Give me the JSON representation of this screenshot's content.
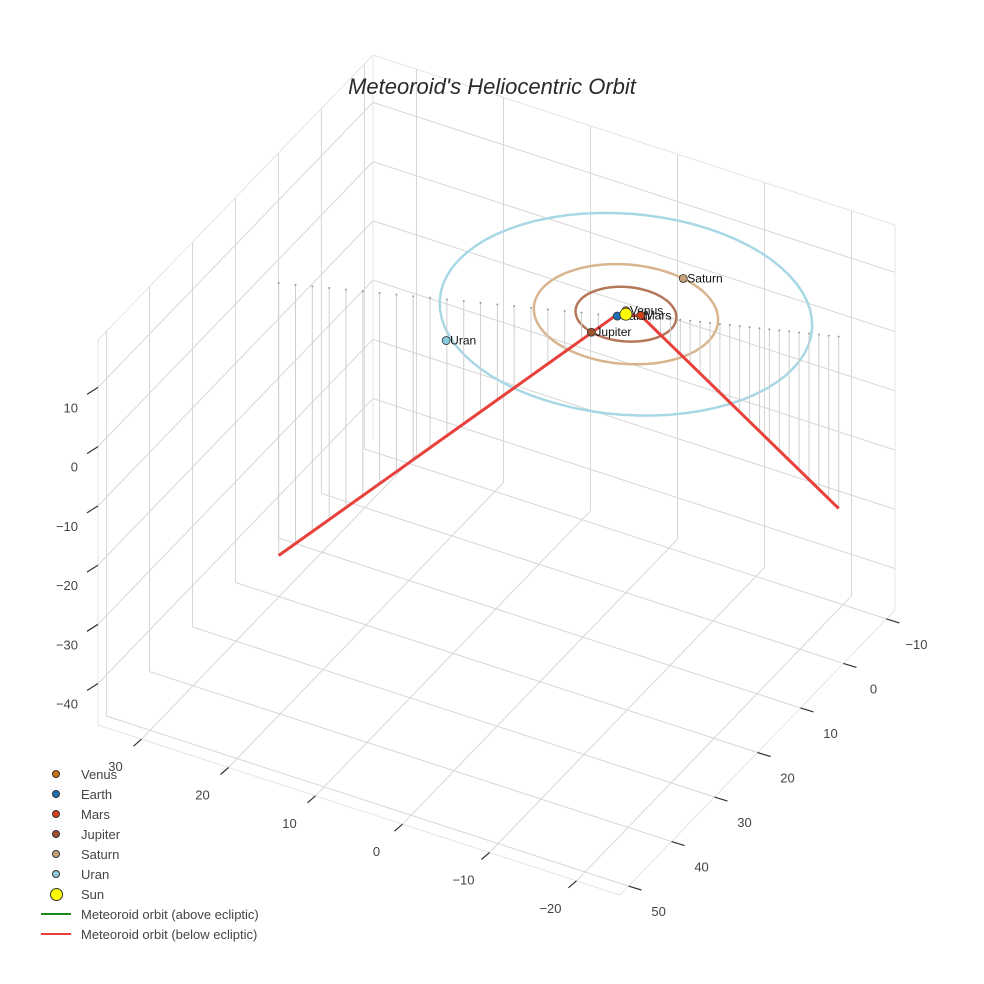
{
  "chart_data": {
    "type": "scatter3d",
    "title": "Meteoroid's Heliocentric Orbit",
    "axes": {
      "x": {
        "label": "",
        "ticks": [
          -20,
          -10,
          0,
          10,
          20,
          30
        ],
        "range": [
          -25,
          35
        ]
      },
      "y": {
        "label": "",
        "ticks": [
          -10,
          0,
          10,
          20,
          30,
          40,
          50
        ],
        "range": [
          -12,
          52
        ]
      },
      "z": {
        "label": "",
        "ticks": [
          10,
          0,
          -10,
          -20,
          -30,
          -40
        ],
        "range": [
          -47,
          18
        ]
      }
    },
    "grid": true,
    "legend_position": "bottom-left",
    "planets": [
      {
        "name": "Venus",
        "color": "#c9720f",
        "x": 0.3,
        "y": -0.6,
        "z": 0,
        "orbit_radius": 0.72,
        "label": "Venus"
      },
      {
        "name": "Earth",
        "color": "#1f6fb5",
        "x": 0.6,
        "y": 0.8,
        "z": 0,
        "orbit_radius": 1.0,
        "label": "Earth"
      },
      {
        "name": "Mars",
        "color": "#d0401b",
        "x": -1.4,
        "y": -0.6,
        "z": 0,
        "orbit_radius": 1.52,
        "label": "Mars"
      },
      {
        "name": "Jupiter",
        "color": "#a0522d",
        "x": 1.5,
        "y": 5.0,
        "z": 0,
        "orbit_radius": 5.2,
        "label": "Jupiter"
      },
      {
        "name": "Saturn",
        "color": "#c8a078",
        "x": -2.0,
        "y": -9.3,
        "z": 0,
        "orbit_radius": 9.5,
        "label": "Saturn"
      },
      {
        "name": "Uran",
        "color": "#8ccbe0",
        "x": 13.5,
        "y": 14.5,
        "z": 0,
        "orbit_radius": 19.2,
        "label": "Uran"
      },
      {
        "name": "Sun",
        "color": "#ffff00",
        "x": 0,
        "y": 0,
        "z": 0,
        "label": ""
      }
    ],
    "orbit_colors": {
      "Jupiter": "#b5775a",
      "Saturn": "#d9b48f",
      "Uran": "#a8d8e6"
    },
    "series": [
      {
        "name": "Meteoroid orbit (above ecliptic)",
        "color": "#1a8a1a",
        "points": []
      },
      {
        "name": "Meteoroid orbit (below ecliptic)",
        "color": "#e8403a",
        "points": [
          {
            "x": -20.5,
            "y": -8,
            "z": -29
          },
          {
            "x": -1.4,
            "y": -0.6,
            "z": 0
          },
          {
            "x": 0.8,
            "y": 0.9,
            "z": 0
          },
          {
            "x": 33,
            "y": 14,
            "z": -46
          }
        ]
      }
    ]
  },
  "legend": {
    "items": [
      {
        "label": "Venus",
        "kind": "dot",
        "color": "#c9720f",
        "size": 8
      },
      {
        "label": "Earth",
        "kind": "dot",
        "color": "#1f6fb5",
        "size": 8
      },
      {
        "label": "Mars",
        "kind": "dot",
        "color": "#d0401b",
        "size": 8
      },
      {
        "label": "Jupiter",
        "kind": "dot",
        "color": "#a0522d",
        "size": 8
      },
      {
        "label": "Saturn",
        "kind": "dot",
        "color": "#c8a078",
        "size": 8
      },
      {
        "label": "Uran",
        "kind": "dot",
        "color": "#8ccbe0",
        "size": 8
      },
      {
        "label": "Sun",
        "kind": "dot",
        "color": "#ffff00",
        "size": 13
      },
      {
        "label": "Meteoroid orbit (above ecliptic)",
        "kind": "line",
        "color": "#1a8a1a"
      },
      {
        "label": "Meteoroid orbit (below ecliptic)",
        "kind": "line",
        "color": "#e8403a"
      }
    ]
  }
}
